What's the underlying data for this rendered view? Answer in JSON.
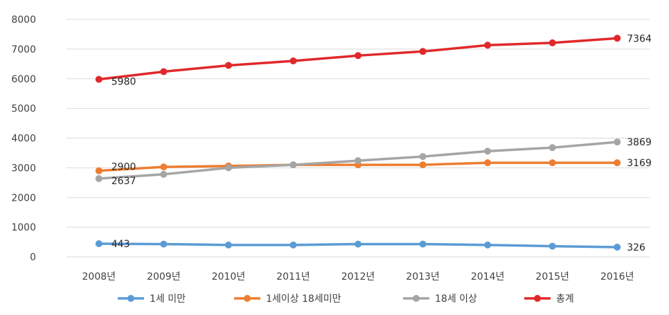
{
  "chart_data": {
    "type": "line",
    "categories": [
      "2008년",
      "2009년",
      "2010년",
      "2011년",
      "2012년",
      "2013년",
      "2014년",
      "2015년",
      "2016년"
    ],
    "ylim": [
      0,
      8000
    ],
    "yticks": [
      0,
      1000,
      2000,
      3000,
      4000,
      5000,
      6000,
      7000,
      8000
    ],
    "grid": true,
    "legend_position": "bottom",
    "series": [
      {
        "name": "1세 미만",
        "color": "#5b9bd5",
        "values": [
          443,
          430,
          400,
          400,
          430,
          430,
          400,
          360,
          326
        ],
        "labels": [
          {
            "index": 0,
            "text": "443"
          },
          {
            "index": 8,
            "text": "326"
          }
        ]
      },
      {
        "name": "1세이상 18세미만",
        "color": "#ed7d31",
        "values": [
          2900,
          3030,
          3060,
          3100,
          3100,
          3100,
          3170,
          3169,
          3169
        ],
        "labels": [
          {
            "index": 0,
            "text": "2900"
          },
          {
            "index": 8,
            "text": "3169"
          }
        ]
      },
      {
        "name": "18세 이상",
        "color": "#a5a5a5",
        "values": [
          2637,
          2780,
          3000,
          3100,
          3240,
          3380,
          3560,
          3680,
          3869
        ],
        "labels": [
          {
            "index": 0,
            "text": "2637"
          },
          {
            "index": 8,
            "text": "3869"
          }
        ]
      },
      {
        "name": "총계",
        "color": "#e0282a",
        "values": [
          5980,
          6240,
          6450,
          6600,
          6780,
          6920,
          7130,
          7210,
          7364
        ],
        "labels": [
          {
            "index": 0,
            "text": "5980"
          },
          {
            "index": 8,
            "text": "7364"
          }
        ]
      }
    ]
  }
}
